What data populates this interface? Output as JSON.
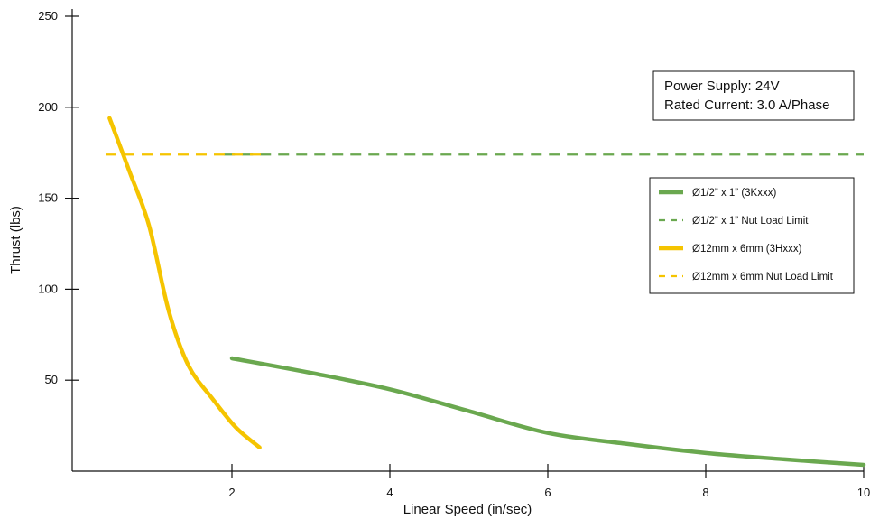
{
  "info_box": {
    "line1": "Power Supply: 24V",
    "line2": "Rated Current: 3.0 A/Phase"
  },
  "chart_data": {
    "type": "line",
    "title": "",
    "xlabel": "Linear Speed (in/sec)",
    "ylabel": "Thrust (lbs)",
    "xlim": [
      0,
      10
    ],
    "ylim": [
      0,
      250
    ],
    "x_ticks": [
      2,
      4,
      6,
      8,
      10
    ],
    "y_ticks": [
      50,
      100,
      150,
      200,
      250
    ],
    "grid": false,
    "legend_position": "right",
    "series": [
      {
        "name": "Ø1/2” x 1” (3Kxxx)",
        "style": "solid",
        "color": "#6aa84f",
        "points": [
          [
            2,
            62
          ],
          [
            3,
            54
          ],
          [
            4,
            45
          ],
          [
            5,
            33
          ],
          [
            6,
            21
          ],
          [
            7,
            15
          ],
          [
            8,
            10
          ],
          [
            9,
            6.5
          ],
          [
            10,
            3.5
          ]
        ]
      },
      {
        "name": "Ø1/2” x 1” Nut Load Limit",
        "style": "dashed",
        "color": "#6aa84f",
        "points": [
          [
            1.9,
            174
          ],
          [
            10,
            174
          ]
        ]
      },
      {
        "name": "Ø12mm x 6mm (3Hxxx)",
        "style": "solid",
        "color": "#f5c400",
        "points": [
          [
            0.45,
            194
          ],
          [
            0.7,
            165
          ],
          [
            0.95,
            135
          ],
          [
            1.2,
            88
          ],
          [
            1.45,
            58
          ],
          [
            1.75,
            40
          ],
          [
            2.05,
            24
          ],
          [
            2.35,
            13
          ]
        ]
      },
      {
        "name": "Ø12mm x 6mm Nut Load Limit",
        "style": "dashed",
        "color": "#f5c400",
        "points": [
          [
            0.4,
            174
          ],
          [
            2.4,
            174
          ]
        ]
      }
    ]
  }
}
